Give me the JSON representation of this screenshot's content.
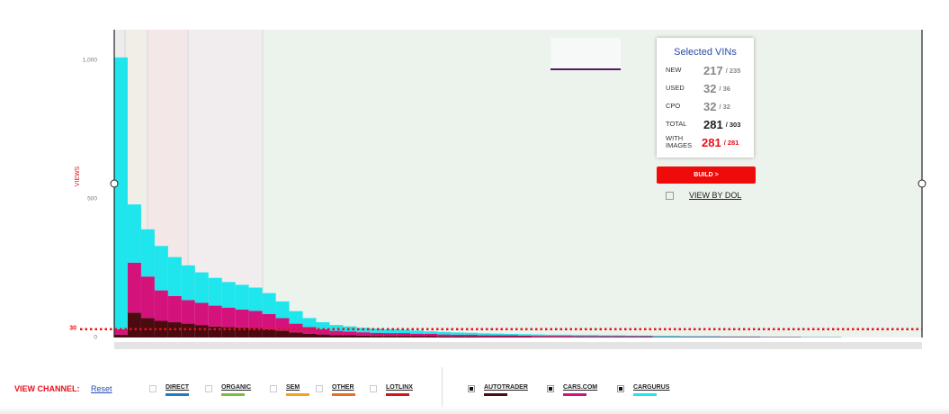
{
  "chart_data": {
    "type": "stacked-bar",
    "y_label": "VIEWS",
    "ylim": [
      0,
      1110
    ],
    "yticks": [
      0,
      500,
      {
        "value": 1000,
        "label": "1,000"
      }
    ],
    "threshold": 30,
    "threshold_color": "#e8101a",
    "series": [
      {
        "name": "AUTOTRADER",
        "color": "#4a0a0f",
        "values": [
          10,
          90,
          70,
          60,
          55,
          50,
          45,
          40,
          38,
          36,
          34,
          30,
          25,
          18,
          14,
          11,
          9,
          8,
          7,
          6,
          6,
          6,
          5,
          5,
          4,
          4,
          4,
          3,
          3,
          3,
          3,
          2,
          2,
          2,
          2,
          2,
          2,
          2,
          2,
          2,
          1,
          1,
          1,
          1,
          1,
          1,
          1,
          1,
          1,
          1,
          1,
          0,
          0,
          0,
          0,
          0,
          0,
          0,
          0,
          0
        ]
      },
      {
        "name": "CARS.COM",
        "color": "#d4127c",
        "values": [
          20,
          180,
          150,
          110,
          95,
          85,
          80,
          75,
          70,
          65,
          62,
          55,
          45,
          32,
          24,
          19,
          15,
          14,
          12,
          11,
          10,
          10,
          9,
          8,
          7,
          6,
          6,
          5,
          5,
          5,
          4,
          4,
          4,
          4,
          3,
          3,
          3,
          3,
          3,
          3,
          2,
          2,
          2,
          2,
          2,
          2,
          2,
          2,
          1,
          1,
          1,
          1,
          1,
          1,
          0,
          0,
          0,
          0,
          0,
          0
        ]
      },
      {
        "name": "CARGURUS",
        "color": "#1ee6ec",
        "values": [
          980,
          210,
          170,
          160,
          140,
          125,
          110,
          100,
          92,
          89,
          84,
          75,
          60,
          45,
          32,
          25,
          21,
          18,
          16,
          15,
          14,
          12,
          11,
          9,
          9,
          8,
          7,
          7,
          6,
          5,
          5,
          5,
          4,
          4,
          4,
          4,
          3,
          3,
          2,
          2,
          3,
          3,
          2,
          2,
          2,
          1,
          1,
          1,
          1,
          1,
          1,
          1,
          1,
          1,
          0,
          0,
          0,
          0,
          0,
          0
        ]
      }
    ]
  },
  "selected_vins": {
    "title": "Selected VINs",
    "rows": [
      {
        "label": "NEW",
        "count": "217",
        "total": "/ 235"
      },
      {
        "label": "USED",
        "count": "32",
        "total": "/ 36"
      },
      {
        "label": "CPO",
        "count": "32",
        "total": "/ 32"
      },
      {
        "label": "TOTAL",
        "count": "281",
        "total": "/ 303"
      },
      {
        "label": "WITH IMAGES",
        "count": "281",
        "total": "/ 281"
      }
    ]
  },
  "build_button": "BUILD >",
  "view_by_dol": "VIEW BY DOL",
  "view_channel": {
    "label": "VIEW CHANNEL:",
    "reset": "Reset",
    "channels": [
      {
        "name": "DIRECT",
        "color": "#1a7fc4",
        "checked": false
      },
      {
        "name": "ORGANIC",
        "color": "#78bf3a",
        "checked": false
      },
      {
        "name": "SEM",
        "color": "#f5a11c",
        "checked": false
      },
      {
        "name": "OTHER",
        "color": "#f26a1b",
        "checked": false
      },
      {
        "name": "LOTLINX",
        "color": "#d5141c",
        "checked": false
      },
      {
        "name": "AUTOTRADER",
        "color": "#4a0a0f",
        "checked": true
      },
      {
        "name": "CARS.COM",
        "color": "#d4127c",
        "checked": true
      },
      {
        "name": "CARGURUS",
        "color": "#1ee6ec",
        "checked": true
      }
    ]
  }
}
